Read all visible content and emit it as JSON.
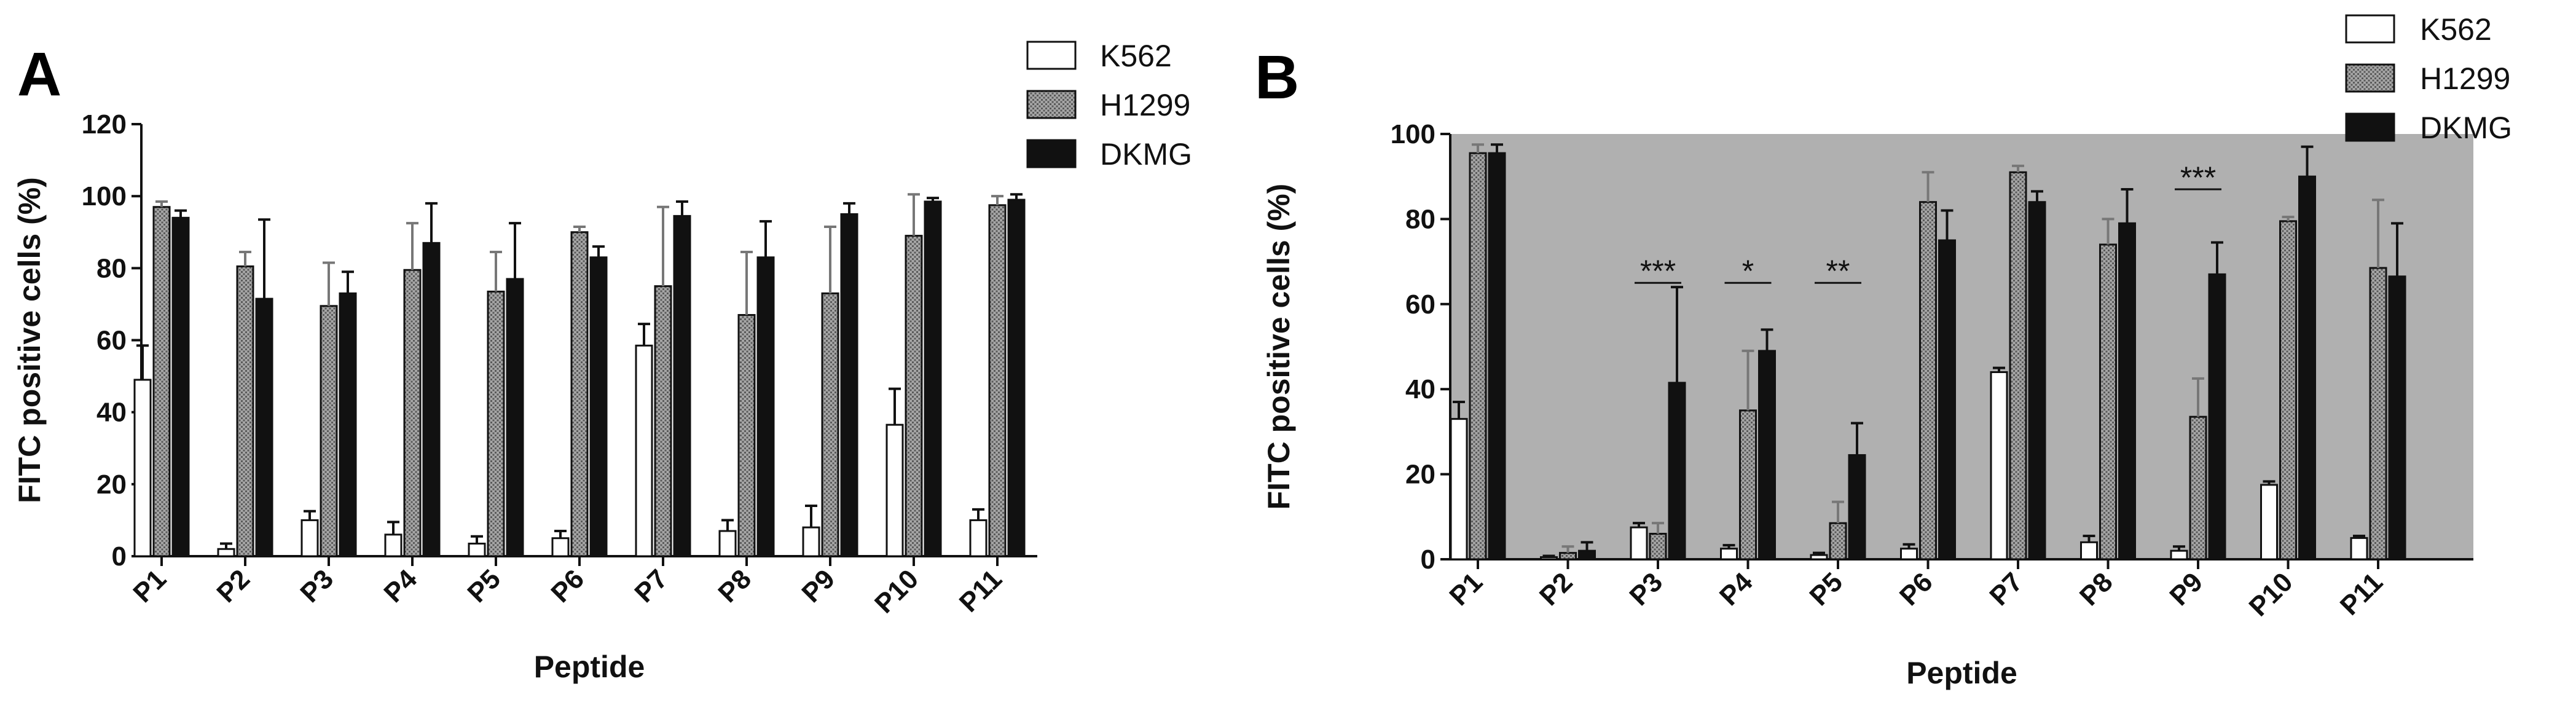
{
  "chart_data": [
    {
      "type": "bar",
      "panel_label": "A",
      "xlabel": "Peptide",
      "ylabel": "FITC positive cells (%)",
      "ylim": [
        0,
        120
      ],
      "yticks": [
        0,
        20,
        40,
        60,
        80,
        100,
        120
      ],
      "background": "#ffffff",
      "categories": [
        "P1",
        "P2",
        "P3",
        "P4",
        "P5",
        "P6",
        "P7",
        "P8",
        "P9",
        "P10",
        "P11"
      ],
      "legend": {
        "position": "top-right"
      },
      "series": [
        {
          "name": "K562",
          "fill": "white",
          "values": [
            49,
            2,
            10,
            6,
            3.5,
            5,
            58.5,
            7,
            8,
            36.5,
            10
          ],
          "errors": [
            9.5,
            1.5,
            2.5,
            3.5,
            2,
            2,
            6,
            3,
            6,
            10,
            3
          ]
        },
        {
          "name": "H1299",
          "fill": "hatch",
          "values": [
            97,
            80.5,
            69.5,
            79.5,
            73.5,
            90,
            75,
            67,
            73,
            89,
            97.5
          ],
          "errors": [
            1.5,
            4,
            12,
            13,
            11,
            1.5,
            22,
            17.5,
            18.5,
            11.5,
            2.5
          ]
        },
        {
          "name": "DKMG",
          "fill": "black",
          "values": [
            94,
            71.5,
            73,
            87,
            77,
            83,
            94.5,
            83,
            95,
            98.5,
            99
          ],
          "errors": [
            2,
            22,
            6,
            11,
            15.5,
            3,
            4,
            10,
            3,
            1,
            1.5
          ]
        }
      ],
      "annotations": []
    },
    {
      "type": "bar",
      "panel_label": "B",
      "xlabel": "Peptide",
      "ylabel": "FITC positive cells (%)",
      "ylim": [
        0,
        100
      ],
      "yticks": [
        0,
        20,
        40,
        60,
        80,
        100
      ],
      "background": "#b0b0b0",
      "categories": [
        "P1",
        "P2",
        "P3",
        "P4",
        "P5",
        "P6",
        "P7",
        "P8",
        "P9",
        "P10",
        "P11"
      ],
      "legend": {
        "position": "top-right"
      },
      "series": [
        {
          "name": "K562",
          "fill": "white",
          "values": [
            33,
            0.5,
            7.5,
            2.5,
            1,
            2.5,
            44,
            4,
            2,
            17.5,
            5
          ],
          "errors": [
            4,
            0.3,
            1,
            0.8,
            0.5,
            1,
            1,
            1.5,
            1,
            0.8,
            0.5
          ]
        },
        {
          "name": "H1299",
          "fill": "hatch",
          "values": [
            95.5,
            1.5,
            6,
            35,
            8.5,
            84,
            91,
            74,
            33.5,
            79.5,
            68.5
          ],
          "errors": [
            2,
            1.5,
            2.5,
            14,
            5,
            7,
            1.5,
            6,
            9,
            1,
            16
          ]
        },
        {
          "name": "DKMG",
          "fill": "black",
          "values": [
            95.5,
            2,
            41.5,
            49,
            24.5,
            75,
            84,
            79,
            67,
            90,
            66.5
          ],
          "errors": [
            2,
            2,
            22.5,
            5,
            7.5,
            7,
            2.5,
            8,
            7.5,
            7,
            12.5
          ]
        }
      ],
      "annotations": [
        {
          "text": "***",
          "category": "P3",
          "y": 65
        },
        {
          "text": "*",
          "category": "P4",
          "y": 65
        },
        {
          "text": "**",
          "category": "P5",
          "y": 65
        },
        {
          "text": "***",
          "category": "P9",
          "y": 87
        }
      ]
    }
  ]
}
